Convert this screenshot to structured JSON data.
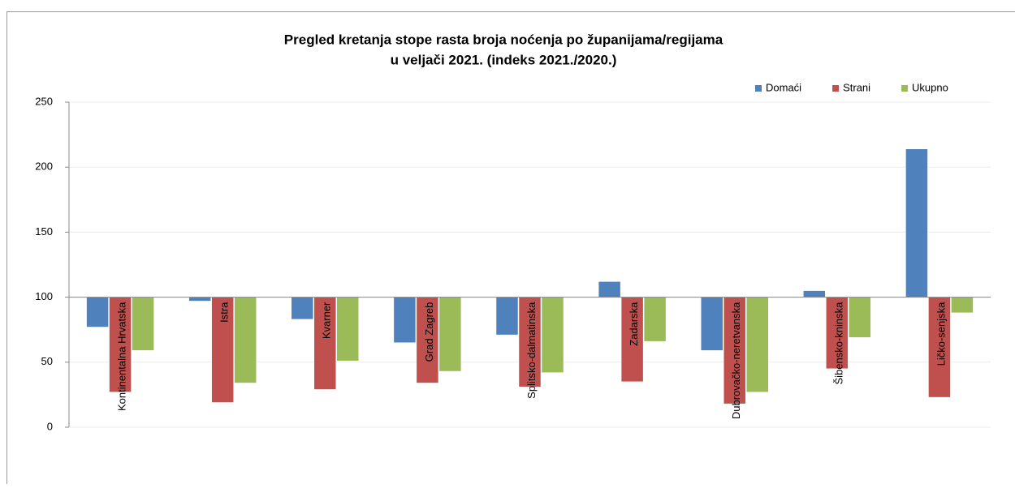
{
  "chart_data": {
    "type": "bar",
    "title": [
      "Pregled kretanja stope rasta broja noćenja po županijama/regijama",
      "u veljači 2021.  (indeks 2021./2020.)"
    ],
    "categories": [
      "Kontinentalna Hrvatska",
      "Istra",
      "Kvarner",
      "Grad Zagreb",
      "Splitsko-dalmatinska",
      "Zadarska",
      "Dubrovačko-neretvanska",
      "Šibensko-kninska",
      "Ličko-senjska"
    ],
    "series": [
      {
        "name": "Domaći",
        "color": "#4f81bd",
        "values": [
          77,
          97,
          83,
          65,
          71,
          112,
          59,
          105,
          214
        ]
      },
      {
        "name": "Strani",
        "color": "#c0504d",
        "values": [
          27,
          19,
          29,
          34,
          31,
          35,
          18,
          45,
          23
        ]
      },
      {
        "name": "Ukupno",
        "color": "#9bbb59",
        "values": [
          59,
          34,
          51,
          43,
          42,
          66,
          27,
          69,
          88
        ]
      }
    ],
    "ylim": [
      0,
      250
    ],
    "yticks": [
      0,
      50,
      100,
      150,
      200,
      250
    ],
    "x_axis_crosses": 100,
    "grid": true,
    "legend": "top-right"
  }
}
